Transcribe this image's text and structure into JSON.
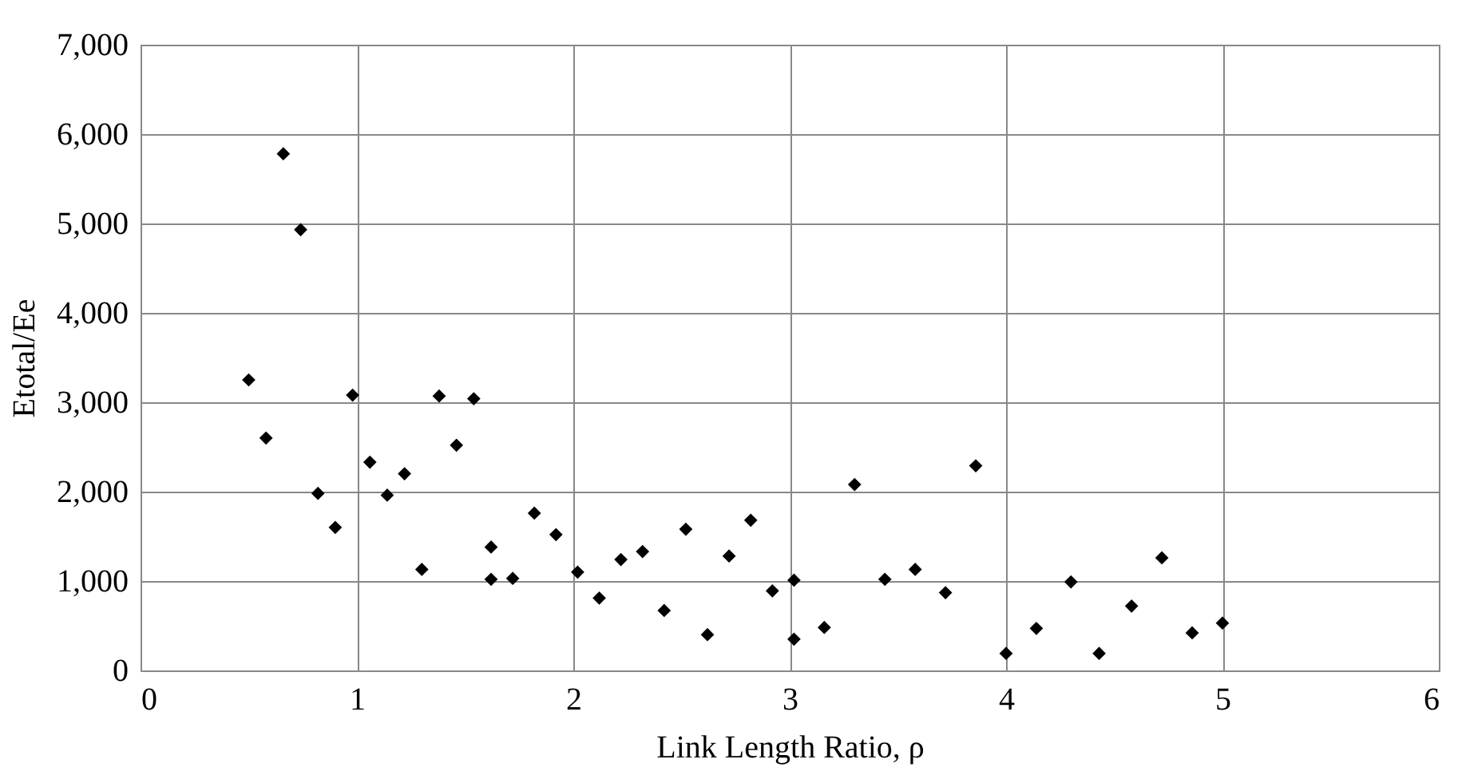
{
  "chart_data": {
    "type": "scatter",
    "xlabel": "Link Length Ratio, ρ",
    "ylabel": "Etotal/Ee",
    "x": [
      0.5,
      0.58,
      0.66,
      0.74,
      0.82,
      0.9,
      0.98,
      1.06,
      1.14,
      1.22,
      1.3,
      1.38,
      1.46,
      1.54,
      1.62,
      1.62,
      1.72,
      1.82,
      1.92,
      2.02,
      2.12,
      2.22,
      2.32,
      2.42,
      2.52,
      2.62,
      2.72,
      2.82,
      2.92,
      3.02,
      3.02,
      3.16,
      3.3,
      3.44,
      3.58,
      3.72,
      3.86,
      4.0,
      4.14,
      4.3,
      4.43,
      4.58,
      4.72,
      4.86,
      5.0
    ],
    "series": [
      {
        "color": "#000000",
        "values": [
          3250,
          2600,
          5780,
          4930,
          1980,
          1600,
          3080,
          2330,
          1960,
          2200,
          1130,
          3070,
          2520,
          3040,
          1380,
          1020,
          1030,
          1760,
          1520,
          1100,
          810,
          1240,
          1330,
          670,
          1580,
          400,
          1280,
          1680,
          890,
          1010,
          350,
          480,
          2080,
          1020,
          1130,
          870,
          2290,
          190,
          470,
          990,
          190,
          720,
          1260,
          420,
          530
        ]
      }
    ],
    "xlim": [
      0,
      6
    ],
    "xticks": [
      0,
      1,
      2,
      3,
      4,
      5,
      6
    ],
    "ylim": [
      0,
      7000
    ],
    "yticks": [
      {
        "value": 0,
        "label": "0"
      },
      {
        "value": 1000,
        "label": "1,000"
      },
      {
        "value": 2000,
        "label": "2,000"
      },
      {
        "value": 3000,
        "label": "3,000"
      },
      {
        "value": 4000,
        "label": "4,000"
      },
      {
        "value": 5000,
        "label": "5,000"
      },
      {
        "value": 6000,
        "label": "6,000"
      },
      {
        "value": 7000,
        "label": "7,000"
      }
    ],
    "grid": true,
    "marker": "diamond"
  }
}
